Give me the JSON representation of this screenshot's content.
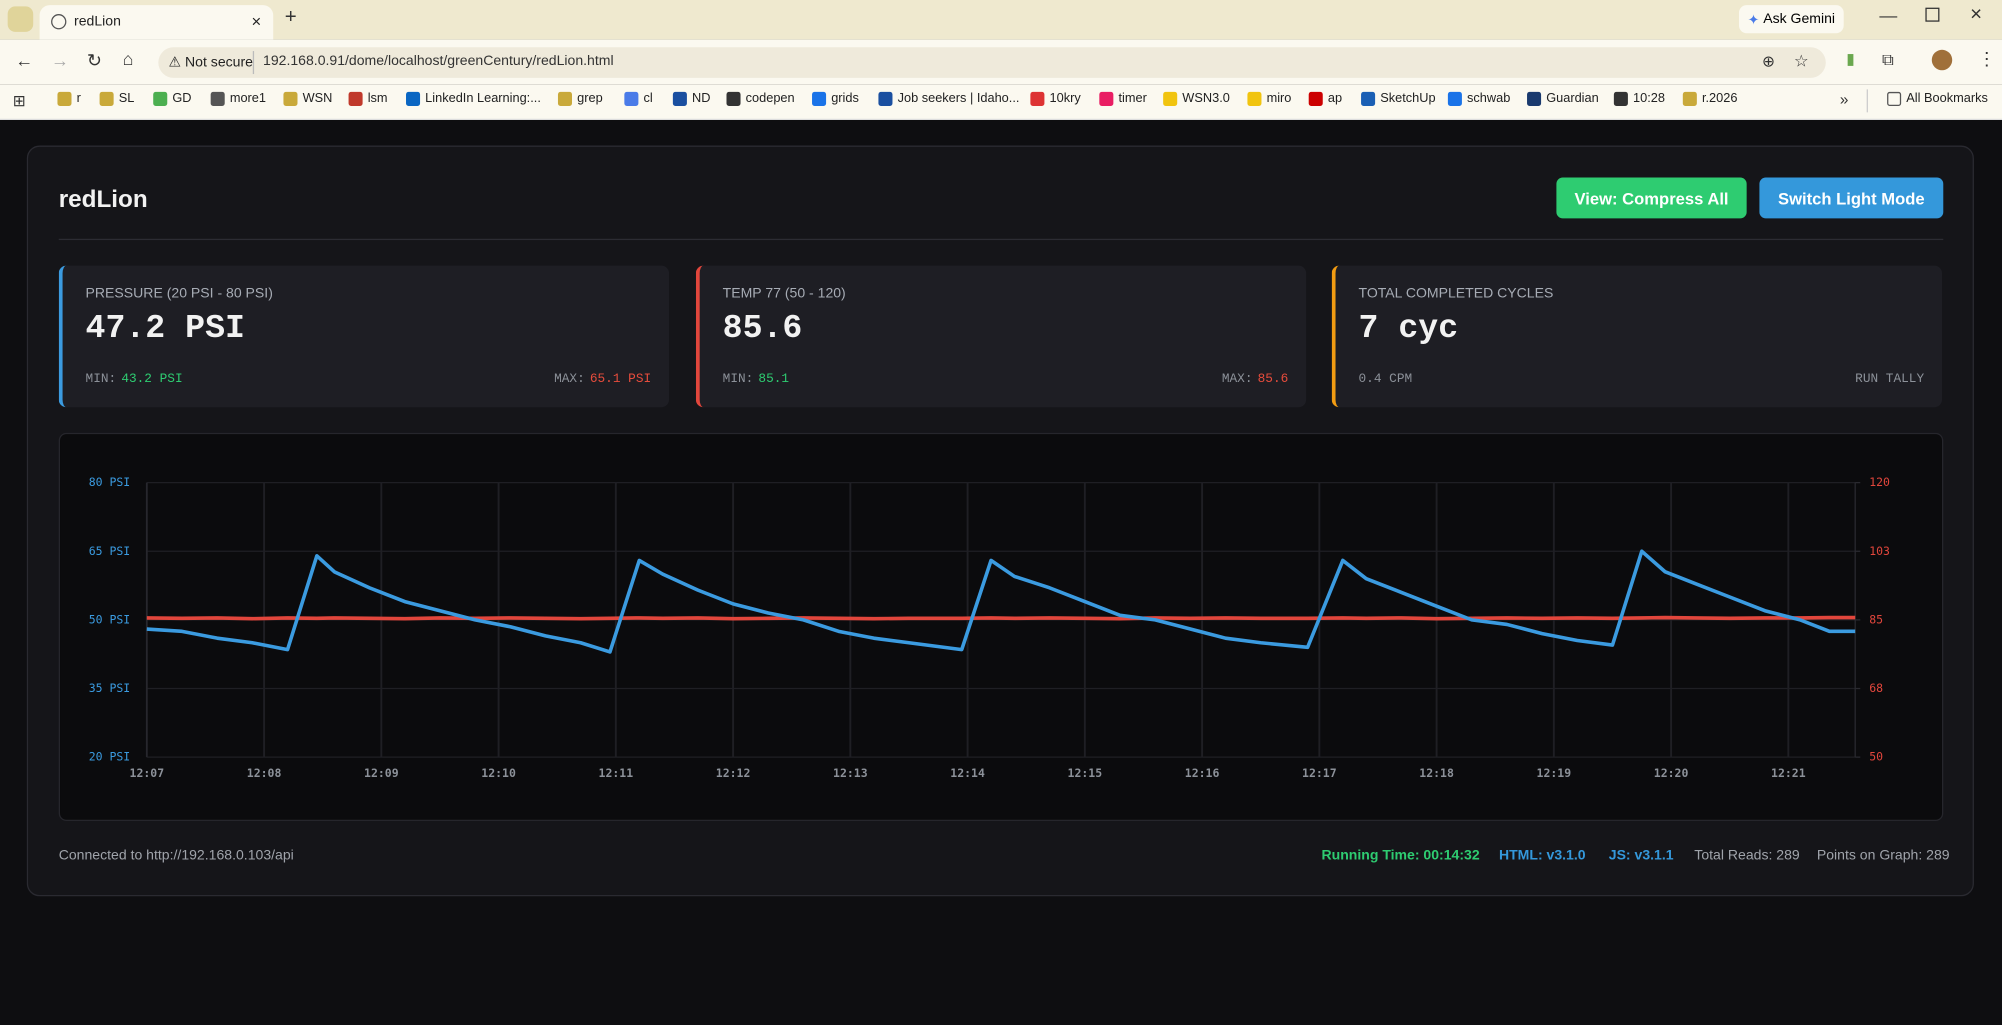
{
  "browser": {
    "tab_title": "redLion",
    "ask_gemini": "Ask Gemini",
    "security": "Not secure",
    "url": "192.168.0.91/dome/localhost/greenCentury/redLion.html",
    "bookmarks": [
      "r",
      "SL",
      "GD",
      "more1",
      "WSN",
      "lsm",
      "LinkedIn Learning:...",
      "grep",
      "cl",
      "ND",
      "codepen",
      "grids",
      "Job seekers | Idaho...",
      "10kry",
      "timer",
      "WSN3.0",
      "miro",
      "ap",
      "SketchUp",
      "schwab",
      "Guardian",
      "10:28",
      "r.2026"
    ],
    "all_bookmarks": "All Bookmarks"
  },
  "header": {
    "title": "redLion",
    "buttons": [
      "View: Compress All",
      "Switch Light Mode"
    ]
  },
  "cards": [
    {
      "label": "PRESSURE (20 PSI - 80 PSI)",
      "value": "47.2 PSI",
      "left": [
        "MIN:",
        "43.2 PSI"
      ],
      "right": [
        "MAX:",
        "65.1 PSI"
      ]
    },
    {
      "label": "TEMP 77 (50 - 120)",
      "value": "85.6",
      "left": [
        "MIN:",
        "85.1"
      ],
      "right": [
        "MAX:",
        "85.6"
      ]
    },
    {
      "label": "TOTAL COMPLETED CYCLES",
      "value": "7 cyc",
      "left": [
        "0.4 CPM"
      ],
      "right": [
        "RUN TALLY"
      ]
    }
  ],
  "chart_data": {
    "type": "line",
    "grid": true,
    "x": [
      7.0,
      7.3,
      7.6,
      7.9,
      8.2,
      8.45,
      8.6,
      8.9,
      9.2,
      9.5,
      9.8,
      10.1,
      10.4,
      10.7,
      10.95,
      11.2,
      11.4,
      11.7,
      12.0,
      12.3,
      12.6,
      12.9,
      13.2,
      13.5,
      13.95,
      14.2,
      14.4,
      14.7,
      15.0,
      15.3,
      15.6,
      15.9,
      16.2,
      16.5,
      16.9,
      17.2,
      17.4,
      17.7,
      18.0,
      18.3,
      18.6,
      18.9,
      19.2,
      19.5,
      19.75,
      19.95,
      20.2,
      20.5,
      20.8,
      21.1,
      21.35,
      21.57
    ],
    "series": [
      {
        "color": "#3b9be0",
        "values": [
          48,
          47.5,
          46,
          45,
          43.5,
          64,
          60.5,
          57,
          54,
          52,
          50,
          48.5,
          46.5,
          45,
          43,
          63,
          60,
          56.5,
          53.5,
          51.5,
          50,
          47.5,
          46,
          45,
          43.5,
          63,
          59.5,
          57,
          54,
          51,
          50,
          48,
          46,
          45,
          44,
          63,
          59,
          56,
          53,
          50,
          49,
          47,
          45.5,
          44.5,
          65,
          60.5,
          58,
          55,
          52,
          50,
          47.5,
          47.5
        ]
      },
      {
        "color": "#e2463c",
        "axis": "y2",
        "values": [
          85.5,
          85.4,
          85.5,
          85.3,
          85.5,
          85.4,
          85.5,
          85.4,
          85.3,
          85.5,
          85.4,
          85.5,
          85.4,
          85.3,
          85.4,
          85.5,
          85.4,
          85.5,
          85.3,
          85.4,
          85.5,
          85.4,
          85.3,
          85.4,
          85.4,
          85.5,
          85.4,
          85.5,
          85.4,
          85.3,
          85.5,
          85.4,
          85.5,
          85.4,
          85.4,
          85.5,
          85.4,
          85.5,
          85.3,
          85.4,
          85.5,
          85.4,
          85.5,
          85.4,
          85.5,
          85.6,
          85.5,
          85.4,
          85.5,
          85.5,
          85.6,
          85.6
        ]
      }
    ],
    "xlim": [
      7,
      21.57
    ],
    "xticks": [
      {
        "value": 7,
        "label": "12:07"
      },
      {
        "value": 8,
        "label": "12:08"
      },
      {
        "value": 9,
        "label": "12:09"
      },
      {
        "value": 10,
        "label": "12:10"
      },
      {
        "value": 11,
        "label": "12:11"
      },
      {
        "value": 12,
        "label": "12:12"
      },
      {
        "value": 13,
        "label": "12:13"
      },
      {
        "value": 14,
        "label": "12:14"
      },
      {
        "value": 15,
        "label": "12:15"
      },
      {
        "value": 16,
        "label": "12:16"
      },
      {
        "value": 17,
        "label": "12:17"
      },
      {
        "value": 18,
        "label": "12:18"
      },
      {
        "value": 19,
        "label": "12:19"
      },
      {
        "value": 20,
        "label": "12:20"
      },
      {
        "value": 21,
        "label": "12:21"
      }
    ],
    "ylim": [
      20,
      80
    ],
    "yticks": [
      {
        "value": 20,
        "label": "20 PSI"
      },
      {
        "value": 35,
        "label": "35 PSI"
      },
      {
        "value": 50,
        "label": "50 PSI"
      },
      {
        "value": 65,
        "label": "65 PSI"
      },
      {
        "value": 80,
        "label": "80 PSI"
      }
    ],
    "y2lim": [
      50,
      120
    ],
    "y2ticks": [
      50,
      {
        "value": 67.5,
        "label": "68"
      },
      85,
      {
        "value": 102.5,
        "label": "103"
      },
      120
    ]
  },
  "footer": {
    "connection": "Connected to http://192.168.0.103/api",
    "stats": [
      "Running Time: 00:14:32",
      "HTML: v3.1.0",
      "JS: v3.1.1",
      "Total Reads: 289",
      "Points on Graph: 289"
    ]
  }
}
